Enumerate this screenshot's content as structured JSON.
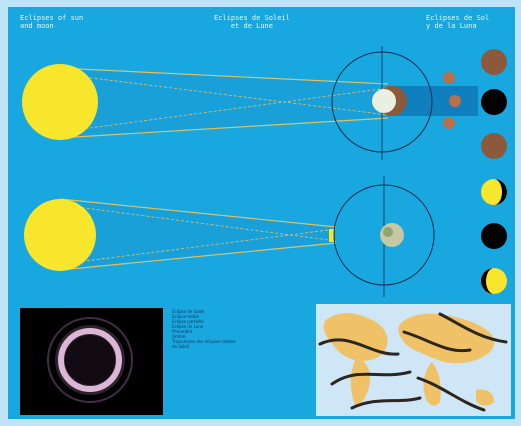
{
  "titles": {
    "solar": "Eclipses of sun\nand moon",
    "center": "Eclipses de Soleil\net de Lune",
    "right": "Eclipses de Sol\ny de la Luna"
  },
  "legend": [
    "Eclipse de Soleil",
    "Eclipse totale",
    "Eclipse partielle",
    "Eclipse de Lune",
    "Pénombre",
    "Ombre",
    "Trajectoires des éclipses totales",
    "de Soleil"
  ],
  "colors": {
    "sea": "#19a7df",
    "sun": "#f7e62c",
    "moon_red": "#8c5a3a",
    "dark": "#000000",
    "map_land": "#f0c267",
    "map_sea": "#cfe6f6"
  }
}
